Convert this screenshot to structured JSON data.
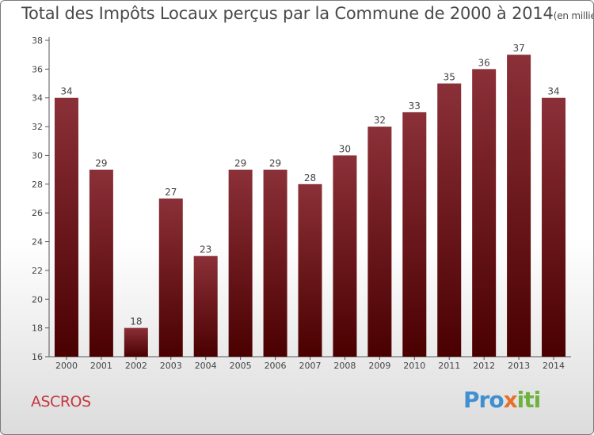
{
  "title": "Total des Impôts Locaux perçus par la Commune de 2000 à 2014",
  "unit": "(en milliers d'€)",
  "commune": "ASCROS",
  "logo": {
    "part1": "Pro",
    "part2": "x",
    "part3": "iti"
  },
  "colors": {
    "bar_top": "#8b3038",
    "bar_bottom": "#4a0000",
    "axis": "#555555",
    "text": "#444444",
    "commune": "#c4393f"
  },
  "chart_data": {
    "type": "bar",
    "title": "Total des Impôts Locaux perçus par la Commune de 2000 à 2014",
    "xlabel": "",
    "ylabel": "",
    "categories": [
      "2000",
      "2001",
      "2002",
      "2003",
      "2004",
      "2005",
      "2006",
      "2007",
      "2008",
      "2009",
      "2010",
      "2011",
      "2012",
      "2013",
      "2014"
    ],
    "values": [
      34,
      29,
      18,
      27,
      23,
      29,
      29,
      28,
      30,
      32,
      33,
      35,
      36,
      37,
      34
    ],
    "ylim": [
      16,
      38
    ],
    "yticks": [
      16,
      18,
      20,
      22,
      24,
      26,
      28,
      30,
      32,
      34,
      36,
      38
    ],
    "grid": false,
    "data_labels": true
  }
}
